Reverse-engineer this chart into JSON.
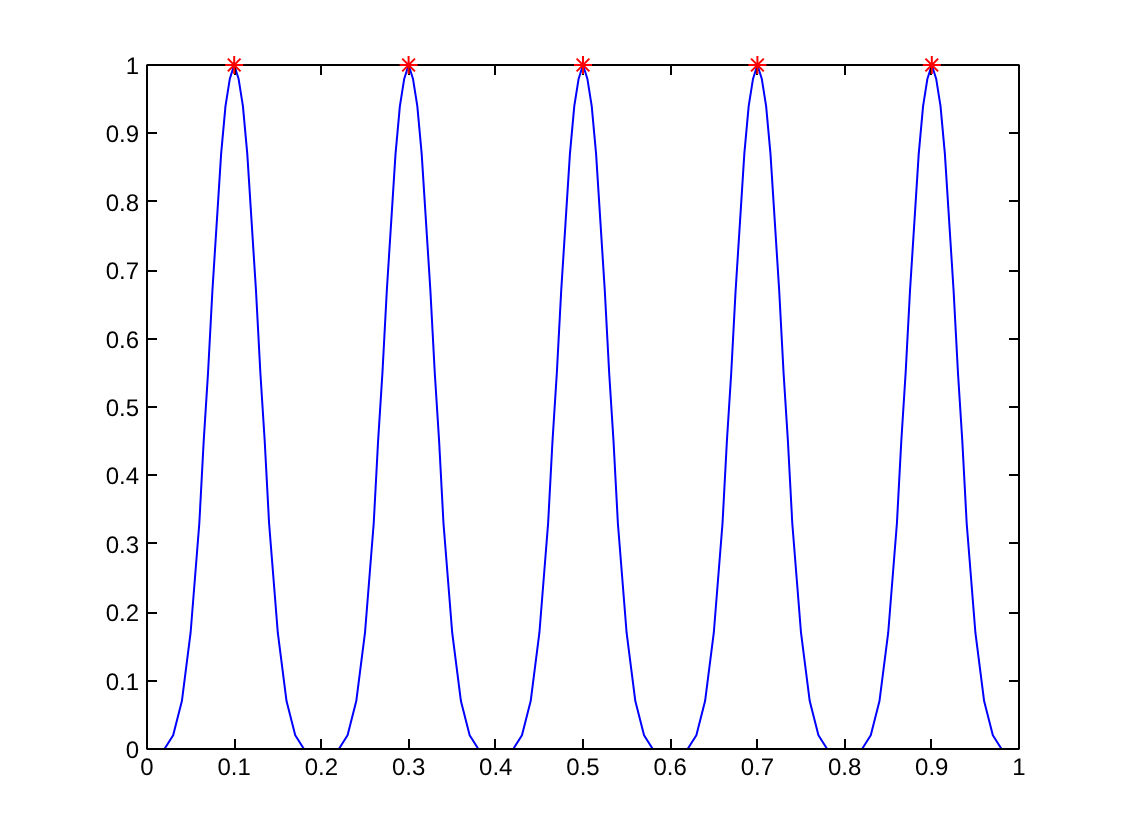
{
  "chart_data": {
    "type": "line",
    "xlim": [
      0,
      1
    ],
    "ylim": [
      0,
      1
    ],
    "xticks": [
      0,
      0.1,
      0.2,
      0.3,
      0.4,
      0.5,
      0.6,
      0.7,
      0.8,
      0.9,
      1
    ],
    "yticks": [
      0,
      0.1,
      0.2,
      0.3,
      0.4,
      0.5,
      0.6,
      0.7,
      0.8,
      0.9,
      1
    ],
    "grid": false,
    "series": [
      {
        "color": "#0000ff",
        "line_style": "solid",
        "x": [
          0,
          0.01,
          0.02,
          0.03,
          0.04,
          0.05,
          0.06,
          0.065,
          0.07,
          0.075,
          0.08,
          0.085,
          0.09,
          0.095,
          0.1,
          0.105,
          0.11,
          0.115,
          0.12,
          0.125,
          0.13,
          0.135,
          0.14,
          0.15,
          0.16,
          0.17,
          0.18,
          0.19,
          0.2,
          0.21,
          0.22,
          0.23,
          0.24,
          0.25,
          0.26,
          0.265,
          0.27,
          0.275,
          0.28,
          0.285,
          0.29,
          0.295,
          0.3,
          0.305,
          0.31,
          0.315,
          0.32,
          0.325,
          0.33,
          0.335,
          0.34,
          0.35,
          0.36,
          0.37,
          0.38,
          0.39,
          0.4,
          0.41,
          0.42,
          0.43,
          0.44,
          0.45,
          0.46,
          0.465,
          0.47,
          0.475,
          0.48,
          0.485,
          0.49,
          0.495,
          0.5,
          0.505,
          0.51,
          0.515,
          0.52,
          0.525,
          0.53,
          0.535,
          0.54,
          0.55,
          0.56,
          0.57,
          0.58,
          0.59,
          0.6,
          0.61,
          0.62,
          0.63,
          0.64,
          0.65,
          0.66,
          0.665,
          0.67,
          0.675,
          0.68,
          0.685,
          0.69,
          0.695,
          0.7,
          0.705,
          0.71,
          0.715,
          0.72,
          0.725,
          0.73,
          0.735,
          0.74,
          0.75,
          0.76,
          0.77,
          0.78,
          0.79,
          0.8,
          0.81,
          0.82,
          0.83,
          0.84,
          0.85,
          0.86,
          0.865,
          0.87,
          0.875,
          0.88,
          0.885,
          0.89,
          0.895,
          0.9,
          0.905,
          0.91,
          0.915,
          0.92,
          0.925,
          0.93,
          0.935,
          0.94,
          0.95,
          0.96,
          0.97,
          0.98,
          0.99,
          1
        ],
        "values": [
          0,
          0,
          0,
          0.02,
          0.07,
          0.17,
          0.33,
          0.45,
          0.55,
          0.67,
          0.77,
          0.87,
          0.94,
          0.98,
          1,
          0.98,
          0.94,
          0.87,
          0.77,
          0.67,
          0.55,
          0.45,
          0.33,
          0.17,
          0.07,
          0.02,
          0,
          0,
          0,
          0,
          0,
          0.02,
          0.07,
          0.17,
          0.33,
          0.45,
          0.55,
          0.67,
          0.77,
          0.87,
          0.94,
          0.98,
          1,
          0.98,
          0.94,
          0.87,
          0.77,
          0.67,
          0.55,
          0.45,
          0.33,
          0.17,
          0.07,
          0.02,
          0,
          0,
          0,
          0,
          0,
          0.02,
          0.07,
          0.17,
          0.33,
          0.45,
          0.55,
          0.67,
          0.77,
          0.87,
          0.94,
          0.98,
          1,
          0.98,
          0.94,
          0.87,
          0.77,
          0.67,
          0.55,
          0.45,
          0.33,
          0.17,
          0.07,
          0.02,
          0,
          0,
          0,
          0,
          0,
          0.02,
          0.07,
          0.17,
          0.33,
          0.45,
          0.55,
          0.67,
          0.77,
          0.87,
          0.94,
          0.98,
          1,
          0.98,
          0.94,
          0.87,
          0.77,
          0.67,
          0.55,
          0.45,
          0.33,
          0.17,
          0.07,
          0.02,
          0,
          0,
          0,
          0,
          0,
          0.02,
          0.07,
          0.17,
          0.33,
          0.45,
          0.55,
          0.67,
          0.77,
          0.87,
          0.94,
          0.98,
          1,
          0.98,
          0.94,
          0.87,
          0.77,
          0.67,
          0.55,
          0.45,
          0.33,
          0.17,
          0.07,
          0.02,
          0,
          0,
          0
        ]
      },
      {
        "type": "scatter",
        "color": "#ff0000",
        "marker": "cross",
        "x": [
          0.1,
          0.3,
          0.5,
          0.7,
          0.9
        ],
        "values": [
          1,
          1,
          1,
          1,
          1
        ]
      }
    ]
  }
}
